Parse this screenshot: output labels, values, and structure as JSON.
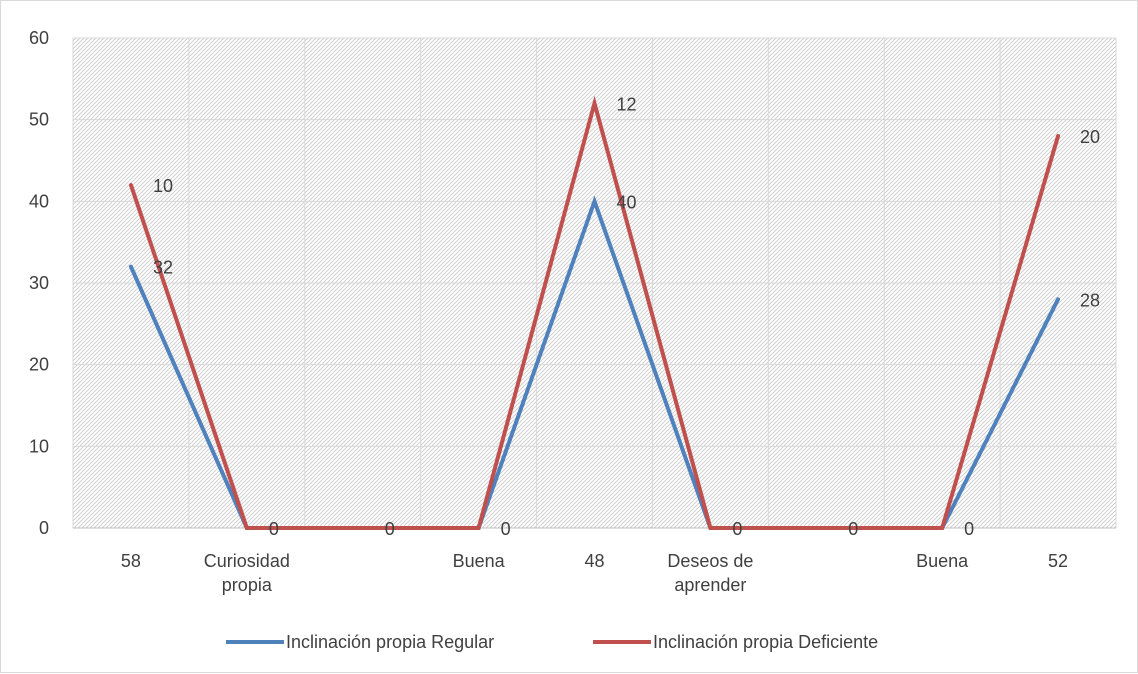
{
  "chart_data": {
    "type": "line",
    "title": "",
    "xlabel": "",
    "ylabel": "",
    "categories": [
      [
        "58"
      ],
      [
        "Curiosidad",
        "propia"
      ],
      [
        ""
      ],
      [
        "Buena"
      ],
      [
        "48"
      ],
      [
        "Deseos de",
        "aprender"
      ],
      [
        ""
      ],
      [
        "Buena"
      ],
      [
        "52"
      ]
    ],
    "ylim": [
      0,
      60
    ],
    "yticks": [
      0,
      10,
      20,
      30,
      40,
      50,
      60
    ],
    "grid": true,
    "legend_position": "bottom",
    "series": [
      {
        "name": "Inclinación propia Regular",
        "color": "#4f81bd",
        "values": [
          32,
          0,
          0,
          0,
          40,
          0,
          0,
          0,
          28
        ],
        "labels": [
          "32",
          "0",
          "0",
          "0",
          "40",
          "0",
          "0",
          "0",
          "28"
        ]
      },
      {
        "name": "Inclinación propia Deficiente",
        "color": "#c0504d",
        "values": [
          42,
          0,
          0,
          0,
          52,
          0,
          0,
          0,
          48
        ],
        "labels": [
          "10",
          "",
          "",
          "",
          "12",
          "",
          "",
          "",
          "20"
        ]
      }
    ]
  }
}
